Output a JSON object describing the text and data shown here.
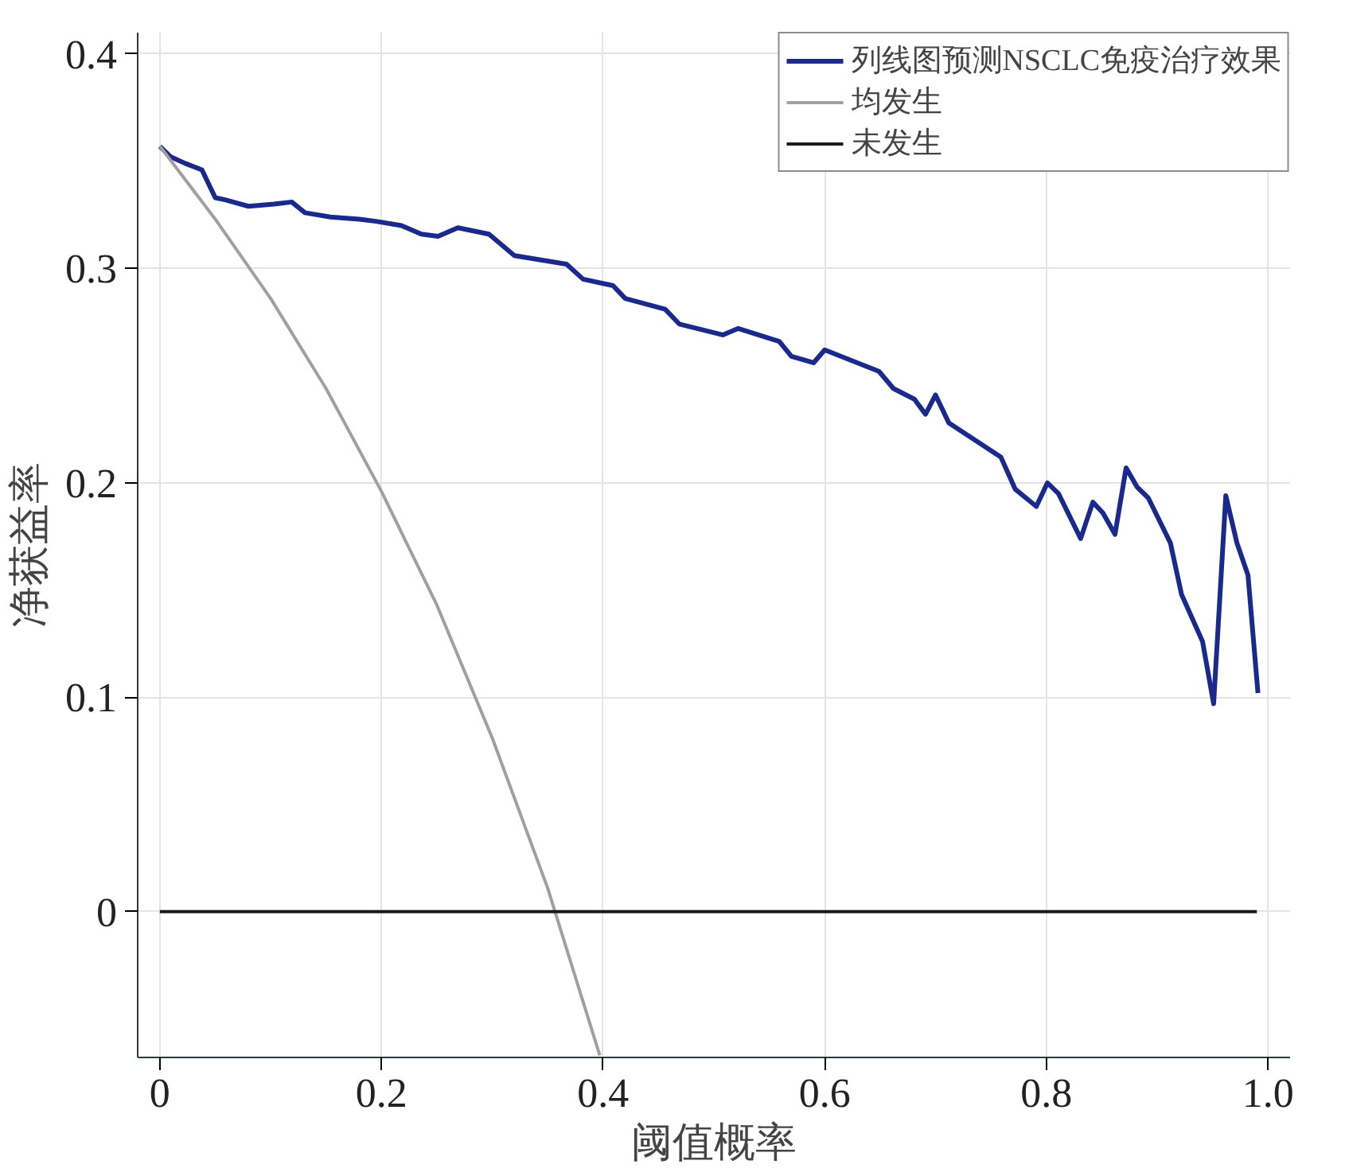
{
  "chart_data": {
    "type": "line",
    "xlabel": "阈值概率",
    "ylabel": "净获益率",
    "xlim": [
      -0.02,
      1.02
    ],
    "ylim": [
      -0.068,
      0.41
    ],
    "xticks": [
      0,
      0.2,
      0.4,
      0.6,
      0.8,
      {
        "value": 1.0,
        "label": "1.0"
      }
    ],
    "yticks": [
      0,
      0.1,
      0.2,
      0.3,
      0.4
    ],
    "grid": true,
    "legend": "top right",
    "series": [
      {
        "name": "列线图预测NSCLC免疫治疗效果",
        "color": "#1a2a8c",
        "x": [
          0,
          0.01,
          0.023,
          0.038,
          0.05,
          0.059,
          0.08,
          0.103,
          0.119,
          0.131,
          0.154,
          0.18,
          0.195,
          0.218,
          0.236,
          0.251,
          0.269,
          0.297,
          0.32,
          0.367,
          0.382,
          0.409,
          0.42,
          0.456,
          0.469,
          0.508,
          0.522,
          0.559,
          0.57,
          0.59,
          0.6,
          0.649,
          0.662,
          0.681,
          0.691,
          0.7,
          0.712,
          0.759,
          0.772,
          0.791,
          0.801,
          0.811,
          0.831,
          0.842,
          0.851,
          0.862,
          0.872,
          0.882,
          0.892,
          0.912,
          0.922,
          0.941,
          0.951,
          0.962,
          0.972,
          0.982,
          0.991
        ],
        "values": [
          0.357,
          0.352,
          0.349,
          0.346,
          0.333,
          0.332,
          0.329,
          0.33,
          0.331,
          0.326,
          0.324,
          0.323,
          0.322,
          0.32,
          0.316,
          0.315,
          0.319,
          0.316,
          0.306,
          0.302,
          0.295,
          0.292,
          0.286,
          0.281,
          0.274,
          0.269,
          0.272,
          0.266,
          0.259,
          0.256,
          0.262,
          0.252,
          0.244,
          0.239,
          0.232,
          0.241,
          0.228,
          0.212,
          0.197,
          0.189,
          0.2,
          0.195,
          0.174,
          0.191,
          0.186,
          0.176,
          0.207,
          0.198,
          0.193,
          0.172,
          0.148,
          0.126,
          0.097,
          0.194,
          0.172,
          0.157,
          0.102
        ]
      },
      {
        "name": "均发生",
        "color": "#a0a0a0",
        "x": [
          0,
          0.05,
          0.1,
          0.15,
          0.2,
          0.25,
          0.3,
          0.35,
          0.397
        ],
        "values": [
          0.357,
          0.323,
          0.286,
          0.244,
          0.196,
          0.143,
          0.081,
          0.011,
          -0.067
        ]
      },
      {
        "name": "未发生",
        "color": "#1a1a1a",
        "x": [
          0,
          0.99
        ],
        "values": [
          0,
          0
        ]
      }
    ]
  }
}
